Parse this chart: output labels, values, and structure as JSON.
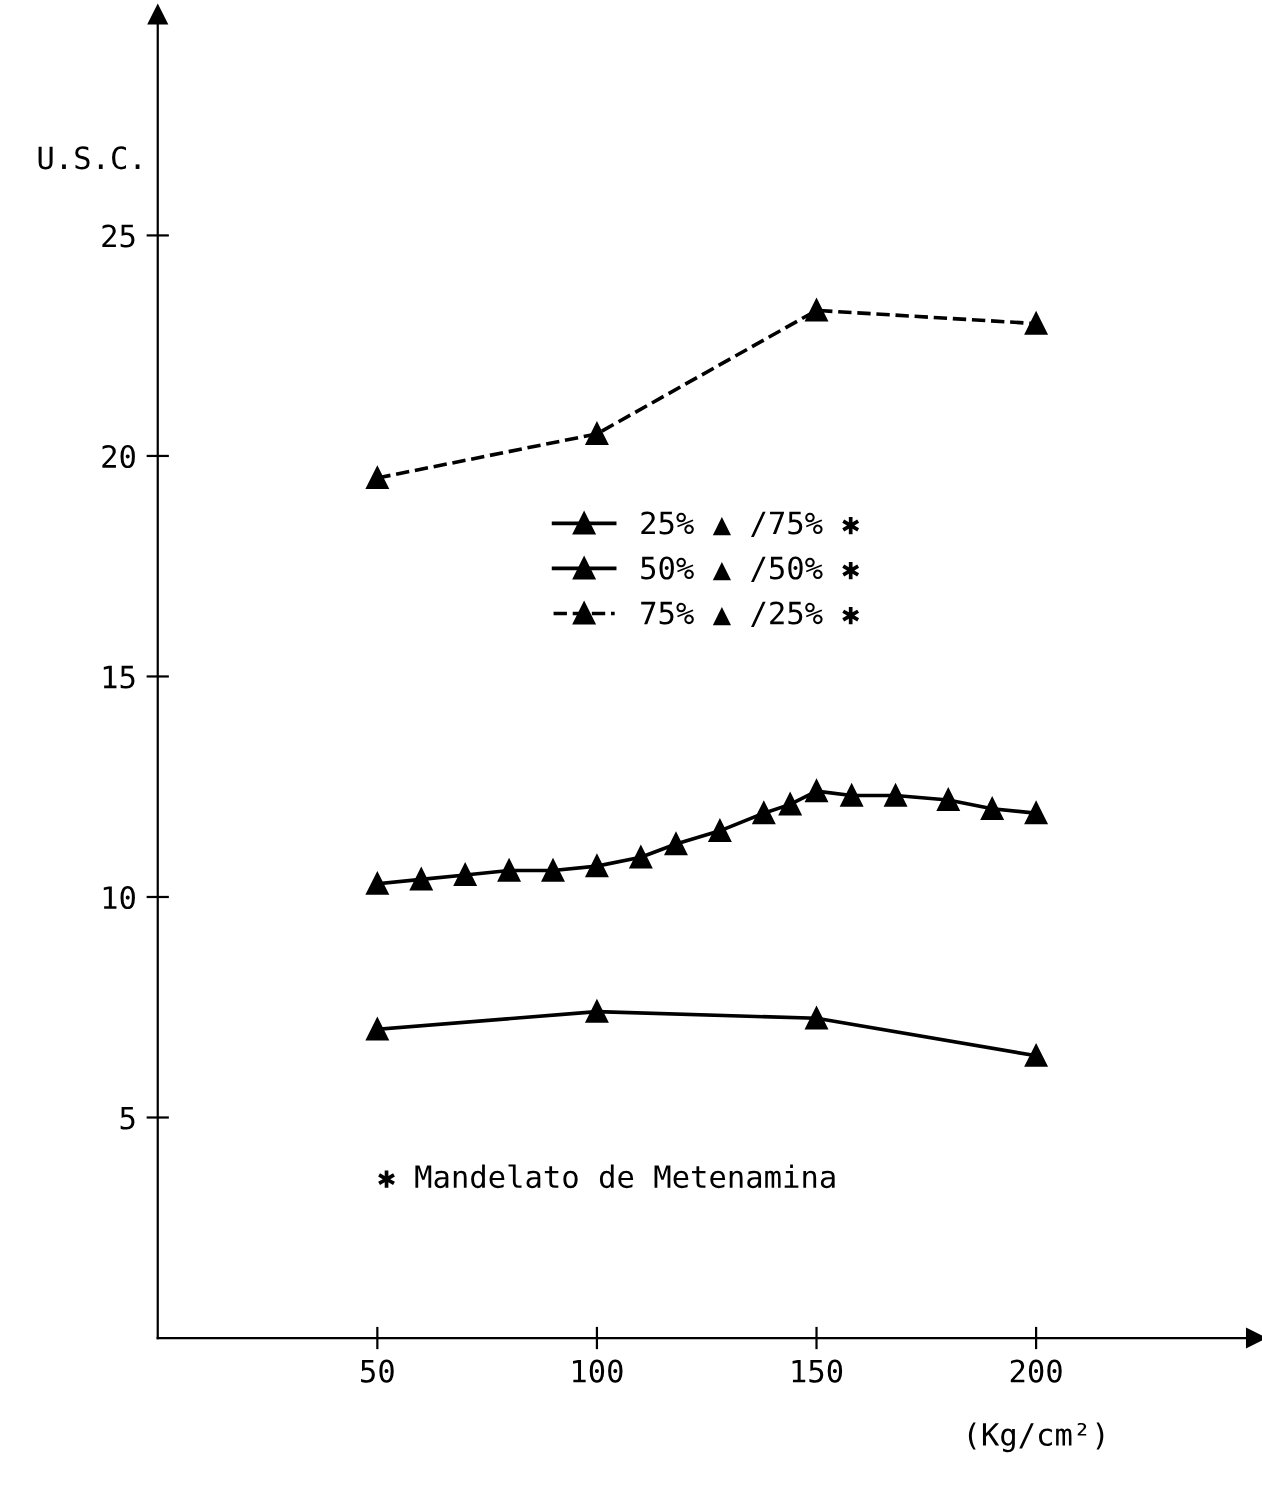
{
  "chart_data": {
    "type": "line",
    "ylabel": "U.S.C.",
    "xlabel": "(Kg/cm²)",
    "xlim": [
      0,
      250
    ],
    "ylim": [
      0,
      30
    ],
    "xticks": [
      50,
      100,
      150,
      200
    ],
    "yticks": [
      5,
      10,
      15,
      20,
      25
    ],
    "grid": false,
    "legend": "center",
    "marker": "triangle",
    "annotations": [
      "✱ Mandelato de Metenamina"
    ],
    "series": [
      {
        "name": "25% ▲ /75% ✱",
        "color": "#000000",
        "line_style": "solid",
        "x": [
          50,
          100,
          150,
          200
        ],
        "values": [
          7.0,
          7.4,
          7.25,
          6.4
        ]
      },
      {
        "name": "50% ▲ /50% ✱",
        "color": "#000000",
        "line_style": "solid",
        "x": [
          50,
          60,
          70,
          80,
          90,
          100,
          110,
          118,
          128,
          138,
          144,
          150,
          158,
          168,
          180,
          190,
          200
        ],
        "values": [
          10.3,
          10.4,
          10.5,
          10.6,
          10.6,
          10.7,
          10.9,
          11.2,
          11.5,
          11.9,
          12.1,
          12.4,
          12.3,
          12.3,
          12.2,
          12.0,
          11.9
        ]
      },
      {
        "name": "75% ▲ /25% ✱",
        "color": "#000000",
        "line_style": "dashed",
        "x": [
          50,
          100,
          150,
          200
        ],
        "values": [
          19.5,
          20.5,
          23.3,
          23.0
        ]
      }
    ]
  }
}
